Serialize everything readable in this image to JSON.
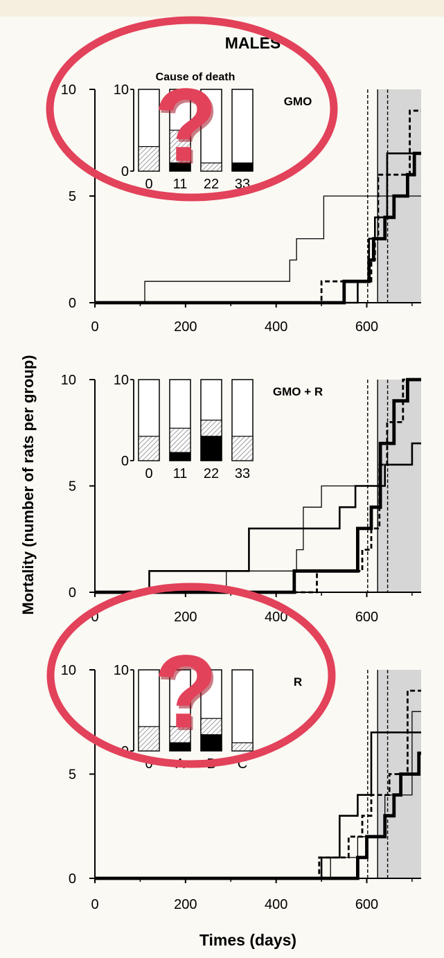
{
  "figure": {
    "title": "MALES",
    "ylabel": "Mortality (number of rats per group)",
    "xlabel": "Times (days)",
    "inset_title": "Cause of death",
    "question_mark": "?",
    "colors": {
      "background": "#fbf9f3",
      "annotation": "#e2425a",
      "shade": "#d6d6d6",
      "hatch": "#9a9a9a",
      "ink": "#000000"
    }
  },
  "chart_data": [
    {
      "type": "line",
      "panel_label": "GMO",
      "xticks": [
        "0",
        "200",
        "400",
        "600"
      ],
      "yticks": [
        "0",
        "5",
        "10"
      ],
      "xlim": [
        0,
        720
      ],
      "ylim": [
        0,
        10
      ],
      "shaded_region": [
        624,
        720
      ],
      "vertical_lines": [
        {
          "x": 602,
          "style": "dashed"
        },
        {
          "x": 624,
          "style": "solid"
        },
        {
          "x": 646,
          "style": "dashed"
        }
      ],
      "series": [
        {
          "style": "thin",
          "x": [
            0,
            110,
            110,
            430,
            430,
            445,
            445,
            505,
            505,
            610,
            610,
            690,
            690,
            720
          ],
          "y": [
            0,
            0,
            1,
            1,
            2,
            2,
            3,
            3,
            5,
            5,
            5,
            5,
            5,
            5
          ]
        },
        {
          "style": "dashed",
          "x": [
            0,
            500,
            500,
            560,
            560,
            610,
            610,
            618,
            618,
            625,
            625,
            695,
            695,
            720
          ],
          "y": [
            0,
            0,
            1,
            1,
            1,
            1,
            2,
            2,
            3,
            3,
            6,
            6,
            9,
            9
          ]
        },
        {
          "style": "medium",
          "x": [
            0,
            580,
            580,
            605,
            605,
            618,
            618,
            645,
            645,
            710,
            710,
            720
          ],
          "y": [
            0,
            0,
            1,
            1,
            3,
            3,
            4,
            4,
            7,
            7,
            7,
            7
          ]
        },
        {
          "style": "thick",
          "x": [
            0,
            550,
            550,
            605,
            605,
            615,
            615,
            640,
            640,
            660,
            660,
            690,
            690,
            705,
            705,
            720
          ],
          "y": [
            0,
            0,
            1,
            1,
            2,
            2,
            3,
            3,
            4,
            4,
            5,
            5,
            6,
            6,
            7,
            7
          ]
        }
      ],
      "inset": {
        "categories": [
          "0",
          "11",
          "22",
          "33"
        ],
        "ylim": [
          0,
          10
        ],
        "yticks": [
          "0",
          "10"
        ],
        "hatched": [
          3,
          4,
          1,
          0
        ],
        "black": [
          0,
          1,
          0,
          1
        ]
      }
    },
    {
      "type": "line",
      "panel_label": "GMO + R",
      "xticks": [
        "0",
        "200",
        "400",
        "600"
      ],
      "yticks": [
        "0",
        "5",
        "10"
      ],
      "xlim": [
        0,
        720
      ],
      "ylim": [
        0,
        10
      ],
      "shaded_region": [
        624,
        720
      ],
      "vertical_lines": [
        {
          "x": 602,
          "style": "dashed"
        },
        {
          "x": 624,
          "style": "solid"
        },
        {
          "x": 646,
          "style": "dashed"
        }
      ],
      "series": [
        {
          "style": "medium",
          "x": [
            0,
            120,
            120,
            340,
            340,
            540,
            540,
            575,
            575,
            640,
            640,
            700,
            700,
            720
          ],
          "y": [
            0,
            0,
            1,
            1,
            3,
            3,
            4,
            4,
            5,
            5,
            6,
            6,
            7,
            7
          ]
        },
        {
          "style": "thin",
          "x": [
            0,
            290,
            290,
            445,
            445,
            460,
            460,
            500,
            500,
            640,
            640,
            700,
            700,
            720
          ],
          "y": [
            0,
            0,
            1,
            1,
            2,
            2,
            4,
            4,
            5,
            5,
            6,
            6,
            7,
            7
          ]
        },
        {
          "style": "dashed",
          "x": [
            0,
            490,
            490,
            590,
            590,
            610,
            610,
            628,
            628,
            645,
            645,
            680,
            680,
            720
          ],
          "y": [
            0,
            0,
            1,
            1,
            2,
            2,
            3,
            3,
            6,
            6,
            8,
            8,
            10,
            10
          ]
        },
        {
          "style": "thick",
          "x": [
            0,
            440,
            440,
            580,
            580,
            610,
            610,
            630,
            630,
            660,
            660,
            690,
            690,
            720
          ],
          "y": [
            0,
            0,
            1,
            1,
            3,
            3,
            4,
            4,
            7,
            7,
            9,
            9,
            10,
            10
          ]
        }
      ],
      "inset": {
        "categories": [
          "0",
          "11",
          "22",
          "33"
        ],
        "ylim": [
          0,
          10
        ],
        "yticks": [
          "0",
          "10"
        ],
        "hatched": [
          3,
          3,
          2,
          3
        ],
        "black": [
          0,
          1,
          3,
          0
        ]
      }
    },
    {
      "type": "line",
      "panel_label": "R",
      "xticks": [
        "0",
        "200",
        "400",
        "600"
      ],
      "yticks": [
        "0",
        "5",
        "10"
      ],
      "xlim": [
        0,
        720
      ],
      "ylim": [
        0,
        10
      ],
      "shaded_region": [
        624,
        720
      ],
      "vertical_lines": [
        {
          "x": 602,
          "style": "dashed"
        },
        {
          "x": 624,
          "style": "solid"
        },
        {
          "x": 646,
          "style": "dashed"
        }
      ],
      "series": [
        {
          "style": "thin",
          "x": [
            0,
            520,
            520,
            580,
            580,
            640,
            640,
            700,
            700,
            720
          ],
          "y": [
            0,
            0,
            1,
            1,
            2,
            2,
            4,
            4,
            8,
            8
          ]
        },
        {
          "style": "medium",
          "x": [
            0,
            500,
            500,
            540,
            540,
            580,
            580,
            600,
            600,
            610,
            610,
            690,
            690,
            720
          ],
          "y": [
            0,
            0,
            1,
            1,
            3,
            3,
            4,
            4,
            4,
            4,
            7,
            7,
            7,
            7
          ]
        },
        {
          "style": "dashed",
          "x": [
            0,
            495,
            495,
            560,
            560,
            590,
            590,
            610,
            610,
            650,
            650,
            690,
            690,
            720
          ],
          "y": [
            0,
            0,
            1,
            1,
            2,
            2,
            3,
            3,
            4,
            4,
            5,
            5,
            9,
            9
          ]
        },
        {
          "style": "thick",
          "x": [
            0,
            580,
            580,
            600,
            600,
            640,
            640,
            660,
            660,
            675,
            675,
            700,
            700,
            715,
            715,
            720
          ],
          "y": [
            0,
            0,
            1,
            1,
            2,
            2,
            3,
            3,
            4,
            4,
            5,
            5,
            5,
            5,
            6,
            6
          ]
        }
      ],
      "inset": {
        "categories": [
          "0",
          "A",
          "B",
          "C"
        ],
        "ylim": [
          0,
          10
        ],
        "yticks": [
          "0",
          "10"
        ],
        "hatched": [
          3,
          2,
          2,
          1
        ],
        "black": [
          0,
          1,
          2,
          0
        ]
      }
    }
  ]
}
